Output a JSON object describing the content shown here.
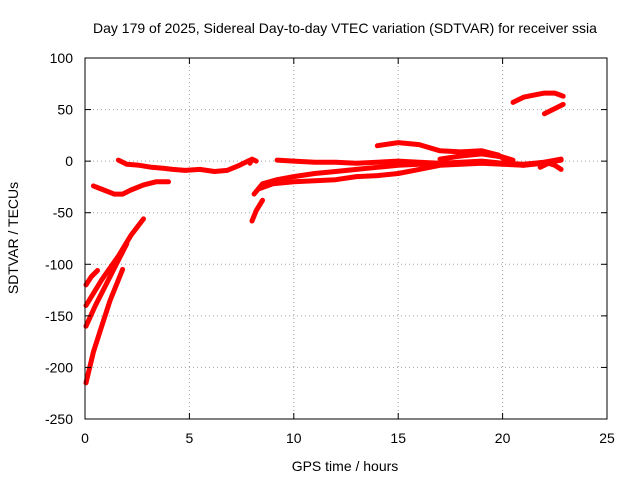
{
  "chart_data": {
    "type": "scatter",
    "title": "Day 179 of 2025, Sidereal Day-to-day VTEC variation (SDTVAR) for receiver ssia",
    "xlabel": "GPS time / hours",
    "ylabel": "SDTVAR / TECUs",
    "xlim": [
      0,
      25
    ],
    "ylim": [
      -250,
      100
    ],
    "xticks": [
      "0",
      "5",
      "10",
      "15",
      "20",
      "25"
    ],
    "yticks": [
      "100",
      "50",
      "0",
      "-50",
      "-100",
      "-150",
      "-200",
      "-250"
    ],
    "grid": true,
    "color": "#ff0000",
    "series": [
      {
        "points": [
          [
            0.05,
            -215
          ],
          [
            0.4,
            -185
          ],
          [
            0.8,
            -160
          ],
          [
            1.2,
            -135
          ],
          [
            1.8,
            -105
          ]
        ]
      },
      {
        "points": [
          [
            0.05,
            -160
          ],
          [
            0.5,
            -140
          ],
          [
            1.0,
            -120
          ],
          [
            1.5,
            -100
          ],
          [
            2.0,
            -80
          ]
        ]
      },
      {
        "points": [
          [
            0.05,
            -140
          ],
          [
            0.8,
            -115
          ],
          [
            1.6,
            -92
          ],
          [
            2.2,
            -72
          ],
          [
            2.8,
            -56
          ]
        ]
      },
      {
        "points": [
          [
            0.05,
            -120
          ],
          [
            0.3,
            -112
          ],
          [
            0.6,
            -106
          ]
        ]
      },
      {
        "points": [
          [
            0.4,
            -24
          ],
          [
            0.9,
            -28
          ],
          [
            1.4,
            -32
          ],
          [
            1.8,
            -32
          ],
          [
            2.2,
            -28
          ],
          [
            2.8,
            -23
          ],
          [
            3.4,
            -20
          ],
          [
            4.0,
            -20
          ]
        ]
      },
      {
        "points": [
          [
            1.6,
            1
          ],
          [
            2.0,
            -3
          ],
          [
            2.6,
            -4
          ],
          [
            3.2,
            -6
          ],
          [
            3.8,
            -7
          ],
          [
            4.2,
            -8
          ],
          [
            4.8,
            -9
          ],
          [
            5.5,
            -8
          ],
          [
            6.2,
            -10
          ],
          [
            6.8,
            -9
          ],
          [
            7.4,
            -4
          ],
          [
            7.9,
            1
          ]
        ]
      },
      {
        "points": [
          [
            7.9,
            -2
          ],
          [
            8.0,
            2
          ],
          [
            8.2,
            0
          ]
        ]
      },
      {
        "points": [
          [
            8.0,
            -58
          ],
          [
            8.2,
            -48
          ],
          [
            8.5,
            -38
          ]
        ]
      },
      {
        "points": [
          [
            8.1,
            -32
          ],
          [
            8.5,
            -22
          ],
          [
            9.2,
            -18
          ],
          [
            10.0,
            -15
          ],
          [
            11.0,
            -12
          ],
          [
            12.0,
            -10
          ],
          [
            13.0,
            -8
          ],
          [
            14.0,
            -6
          ],
          [
            15.0,
            -4
          ],
          [
            16.0,
            -3
          ],
          [
            17.0,
            -3
          ],
          [
            18.0,
            -2
          ],
          [
            19.0,
            -1
          ],
          [
            20.0,
            -2
          ],
          [
            21.0,
            -3
          ],
          [
            22.0,
            -1
          ],
          [
            22.8,
            1
          ]
        ]
      },
      {
        "points": [
          [
            8.3,
            -27
          ],
          [
            9.0,
            -22
          ],
          [
            10.0,
            -20
          ],
          [
            11.0,
            -19
          ],
          [
            12.0,
            -18
          ],
          [
            13.0,
            -15
          ],
          [
            14.0,
            -14
          ],
          [
            15.0,
            -12
          ],
          [
            16.0,
            -8
          ],
          [
            17.0,
            -4
          ],
          [
            18.0,
            -3
          ],
          [
            19.0,
            -2
          ],
          [
            20.0,
            -3
          ],
          [
            21.0,
            -4
          ],
          [
            22.0,
            -2
          ],
          [
            22.8,
            1
          ]
        ]
      },
      {
        "points": [
          [
            9.2,
            1
          ],
          [
            10.0,
            0
          ],
          [
            11.0,
            -1
          ],
          [
            12.0,
            -1
          ],
          [
            13.0,
            -2
          ],
          [
            14.0,
            -1
          ],
          [
            15.0,
            0
          ],
          [
            16.0,
            -1
          ],
          [
            17.0,
            -2
          ],
          [
            18.0,
            -1
          ],
          [
            19.0,
            0
          ],
          [
            20.0,
            -2
          ],
          [
            21.0,
            -4
          ],
          [
            22.0,
            -1
          ],
          [
            22.8,
            2
          ]
        ]
      },
      {
        "points": [
          [
            14.0,
            15
          ],
          [
            15.0,
            18
          ],
          [
            16.0,
            16
          ],
          [
            17.0,
            10
          ],
          [
            18.0,
            9
          ],
          [
            19.0,
            10
          ],
          [
            19.8,
            6
          ],
          [
            20.2,
            0
          ]
        ]
      },
      {
        "points": [
          [
            17.0,
            2
          ],
          [
            18.0,
            5
          ],
          [
            19.0,
            7
          ],
          [
            20.0,
            4
          ],
          [
            20.5,
            1
          ]
        ]
      },
      {
        "points": [
          [
            21.8,
            -6
          ],
          [
            22.2,
            -2
          ],
          [
            22.5,
            -4
          ],
          [
            22.8,
            -8
          ]
        ]
      },
      {
        "points": [
          [
            20.5,
            57
          ],
          [
            21.0,
            62
          ],
          [
            21.5,
            64
          ],
          [
            22.0,
            66
          ],
          [
            22.5,
            66
          ],
          [
            22.9,
            63
          ]
        ]
      },
      {
        "points": [
          [
            22.0,
            46
          ],
          [
            22.4,
            50
          ],
          [
            22.9,
            55
          ]
        ]
      }
    ]
  }
}
